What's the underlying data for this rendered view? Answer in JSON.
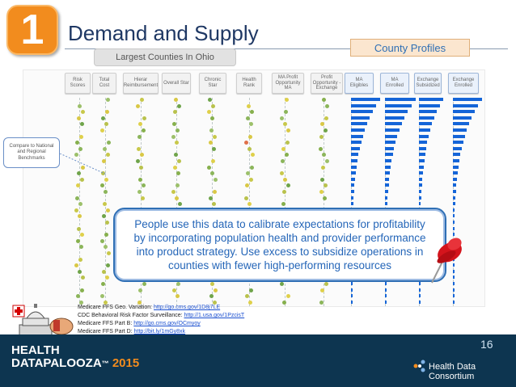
{
  "slide": {
    "number": "1",
    "title": "Demand and Supply",
    "county_profiles": "County Profiles",
    "largest_tab": "Largest Counties In Ohio",
    "page_number": "16"
  },
  "columns": [
    {
      "label": "Risk Scores",
      "style": "plain"
    },
    {
      "label": "Total Cost",
      "style": "plain"
    },
    {
      "label": "Hierar Reimbursement",
      "style": "plain"
    },
    {
      "label": "Overall Star",
      "style": "plain"
    },
    {
      "label": "Chronic Star",
      "style": "plain"
    },
    {
      "label": "Health Rank",
      "style": "plain"
    },
    {
      "label": "MA Profit Opportunity MA",
      "style": "plain"
    },
    {
      "label": "Profit Opportunity -Exchange",
      "style": "plain"
    },
    {
      "label": "MA Eligibles",
      "style": "blue"
    },
    {
      "label": "MA Enrolled",
      "style": "blue"
    },
    {
      "label": "Exchange Subsidized",
      "style": "blue"
    },
    {
      "label": "Exchange Enrolled",
      "style": "blue"
    }
  ],
  "callout": "Compare to National and Regional Benchmarks",
  "message": "People use this data to calibrate expectations for profitability by incorporating population health and provider performance into product strategy. Use excess to subsidize operations in counties with fewer high-performing resources",
  "references": [
    {
      "label": "Medicare FFS Geo. Variation: ",
      "link": "http://go.cms.gov/1D8j7LE"
    },
    {
      "label": "CDC Behavioral Risk Factor Surveillance: ",
      "link": "http://1.usa.gov/1PzcisT"
    },
    {
      "label": "Medicare FFS Part B: ",
      "link": "http://go.cms.gov/OCmyoy"
    },
    {
      "label": "Medicare FFS Part D: ",
      "link": "http://bit.ly/1mGy8xk"
    }
  ],
  "footer": {
    "logo_line1": "HEALTH",
    "logo_line2": "DATAPALOOZA",
    "logo_year": "2015",
    "org": "Health Data Consortium"
  },
  "colors": {
    "accent_orange": "#f28c1e",
    "title_blue": "#1f3864",
    "bar_blue": "#1565d8",
    "footer_navy": "#0d3550"
  }
}
